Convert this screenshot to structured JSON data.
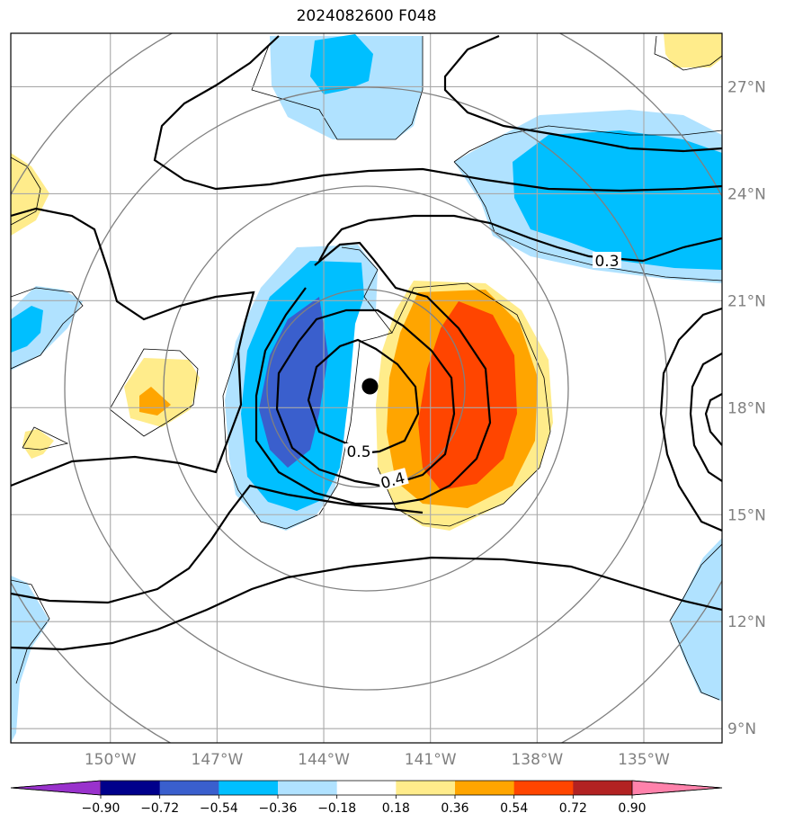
{
  "title": "2024082600 F048",
  "chart_data": {
    "type": "heatmap",
    "title": "2024082600 F048",
    "projection": "lat-lon map with black contour lines over color-filled anomaly field",
    "x_axis": {
      "ticks": [
        "150°W",
        "147°W",
        "144°W",
        "141°W",
        "138°W",
        "135°W"
      ],
      "values": [
        -150,
        -147,
        -144,
        -141,
        -138,
        -135
      ],
      "range": [
        -152.8,
        -132.8
      ]
    },
    "y_axis": {
      "ticks": [
        "9°N",
        "12°N",
        "15°N",
        "18°N",
        "21°N",
        "24°N",
        "27°N"
      ],
      "values": [
        9,
        12,
        15,
        18,
        21,
        24,
        27
      ],
      "range": [
        8.6,
        28.5
      ]
    },
    "grid": true,
    "center_marker": {
      "lon": -142.7,
      "lat": 18.6
    },
    "contour_labels": [
      "0.5",
      "0.4",
      "0.3"
    ],
    "colorbar": {
      "orientation": "horizontal",
      "levels": [
        "−0.90",
        "−0.72",
        "−0.54",
        "−0.36",
        "−0.18",
        "0.18",
        "0.36",
        "0.54",
        "0.72",
        "0.90"
      ],
      "colors": [
        "#9932CC",
        "#00008B",
        "#3A5FCD",
        "#00BFFF",
        "#B0E2FF",
        "#FFFFFF",
        "#FFEC8B",
        "#FFA500",
        "#FF4500",
        "#B22222",
        "#FF82AB"
      ]
    },
    "filled_regions": [
      {
        "label": "-0.72 to -0.54",
        "color": "#3A5FCD",
        "lon": [
          -146,
          -143.5
        ],
        "lat": [
          16.5,
          21.5
        ]
      },
      {
        "label": "-0.54 to -0.36",
        "color": "#00BFFF",
        "lon": [
          -147,
          -142.5
        ],
        "lat": [
          15.3,
          22.2
        ]
      },
      {
        "label": "0.54 to 0.72",
        "color": "#FF4500",
        "lon": [
          -141,
          -138.5
        ],
        "lat": [
          15.8,
          21.0
        ]
      },
      {
        "label": "0.36 to 0.54",
        "color": "#FFA500",
        "lon": [
          -142,
          -137.8
        ],
        "lat": [
          15.3,
          21.6
        ]
      },
      {
        "label": "0.18 to 0.36",
        "color": "#FFEC8B",
        "lon": [
          -142.5,
          -137.2
        ],
        "lat": [
          14.7,
          22.2
        ]
      }
    ]
  }
}
